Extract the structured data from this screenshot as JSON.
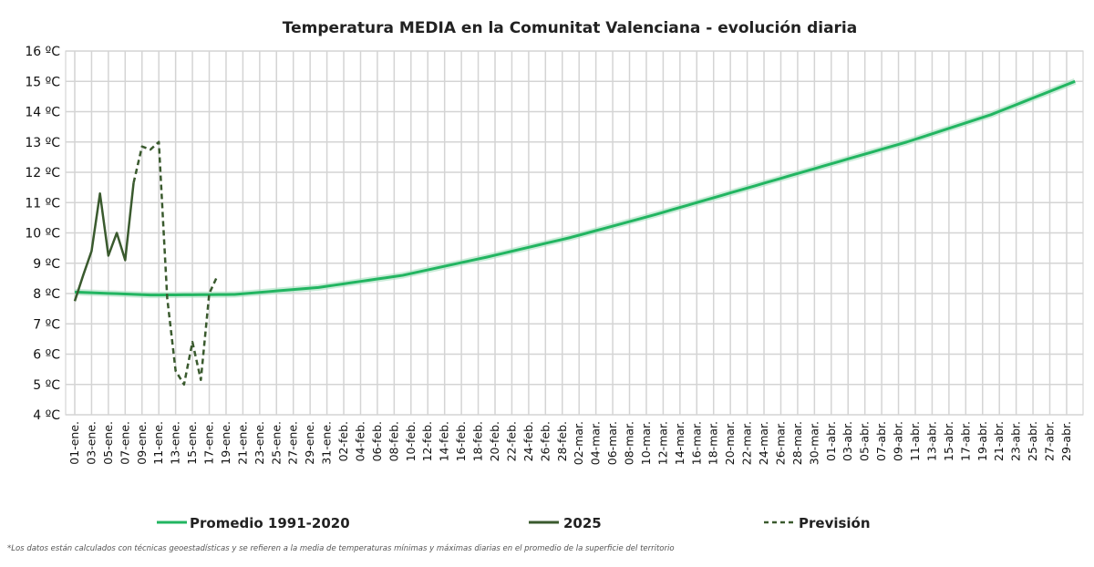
{
  "chart_data": {
    "type": "line",
    "title": "Temperatura MEDIA en la Comunitat Valenciana - evolución diaria",
    "ylim": [
      4,
      16
    ],
    "yticks": [
      "4 ºC",
      "5 ºC",
      "6 ºC",
      "7 ºC",
      "8 ºC",
      "9 ºC",
      "10 ºC",
      "11 ºC",
      "12 ºC",
      "13 ºC",
      "14 ºC",
      "15 ºC",
      "16 ºC"
    ],
    "x_unit": "day of year",
    "xlim": [
      1,
      120
    ],
    "xticks": [
      "01-ene.",
      "03-ene.",
      "05-ene.",
      "07-ene.",
      "09-ene.",
      "11-ene.",
      "13-ene.",
      "15-ene.",
      "17-ene.",
      "19-ene.",
      "21-ene.",
      "23-ene.",
      "25-ene.",
      "27-ene.",
      "29-ene.",
      "31-ene.",
      "02-feb.",
      "04-feb.",
      "06-feb.",
      "08-feb.",
      "10-feb.",
      "12-feb.",
      "14-feb.",
      "16-feb.",
      "18-feb.",
      "20-feb.",
      "22-feb.",
      "24-feb.",
      "26-feb.",
      "28-feb.",
      "02-mar.",
      "04-mar.",
      "06-mar.",
      "08-mar.",
      "10-mar.",
      "12-mar.",
      "14-mar.",
      "16-mar.",
      "18-mar.",
      "20-mar.",
      "22-mar.",
      "24-mar.",
      "26-mar.",
      "28-mar.",
      "30-mar.",
      "01-abr.",
      "03-abr.",
      "05-abr.",
      "07-abr.",
      "09-abr.",
      "11-abr.",
      "13-abr.",
      "15-abr.",
      "17-abr.",
      "19-abr.",
      "21-abr.",
      "23-abr.",
      "25-abr.",
      "27-abr.",
      "29-abr."
    ],
    "grid": true,
    "legend_position": "bottom",
    "series": [
      {
        "name": "Promedio 1991-2020",
        "color": "#22b561",
        "style": "solid",
        "x": [
          1,
          10,
          20,
          30,
          40,
          50,
          60,
          70,
          80,
          90,
          100,
          110,
          120
        ],
        "y": [
          8.05,
          7.95,
          7.97,
          8.2,
          8.6,
          9.2,
          9.85,
          10.6,
          11.4,
          12.2,
          13.0,
          13.9,
          15.0
        ]
      },
      {
        "name": "2025",
        "color": "#3a5a2e",
        "style": "solid",
        "x": [
          1,
          2,
          3,
          4,
          5,
          6,
          7,
          8
        ],
        "y": [
          7.75,
          8.6,
          9.4,
          11.3,
          9.25,
          10.0,
          9.1,
          11.65
        ]
      },
      {
        "name": "Previsión",
        "color": "#3a5a2e",
        "style": "dashed",
        "x": [
          8,
          9,
          10,
          11,
          12,
          13,
          14,
          15,
          16,
          17,
          18
        ],
        "y": [
          11.65,
          12.85,
          12.75,
          13.0,
          7.85,
          5.45,
          5.0,
          6.4,
          5.15,
          8.0,
          8.6
        ]
      }
    ],
    "footnote": "*Los datos están calculados con técnicas geoestadísticas y se refieren a la media de temperaturas mínimas y máximas diarias en el promedio de la superficie del territorio"
  }
}
